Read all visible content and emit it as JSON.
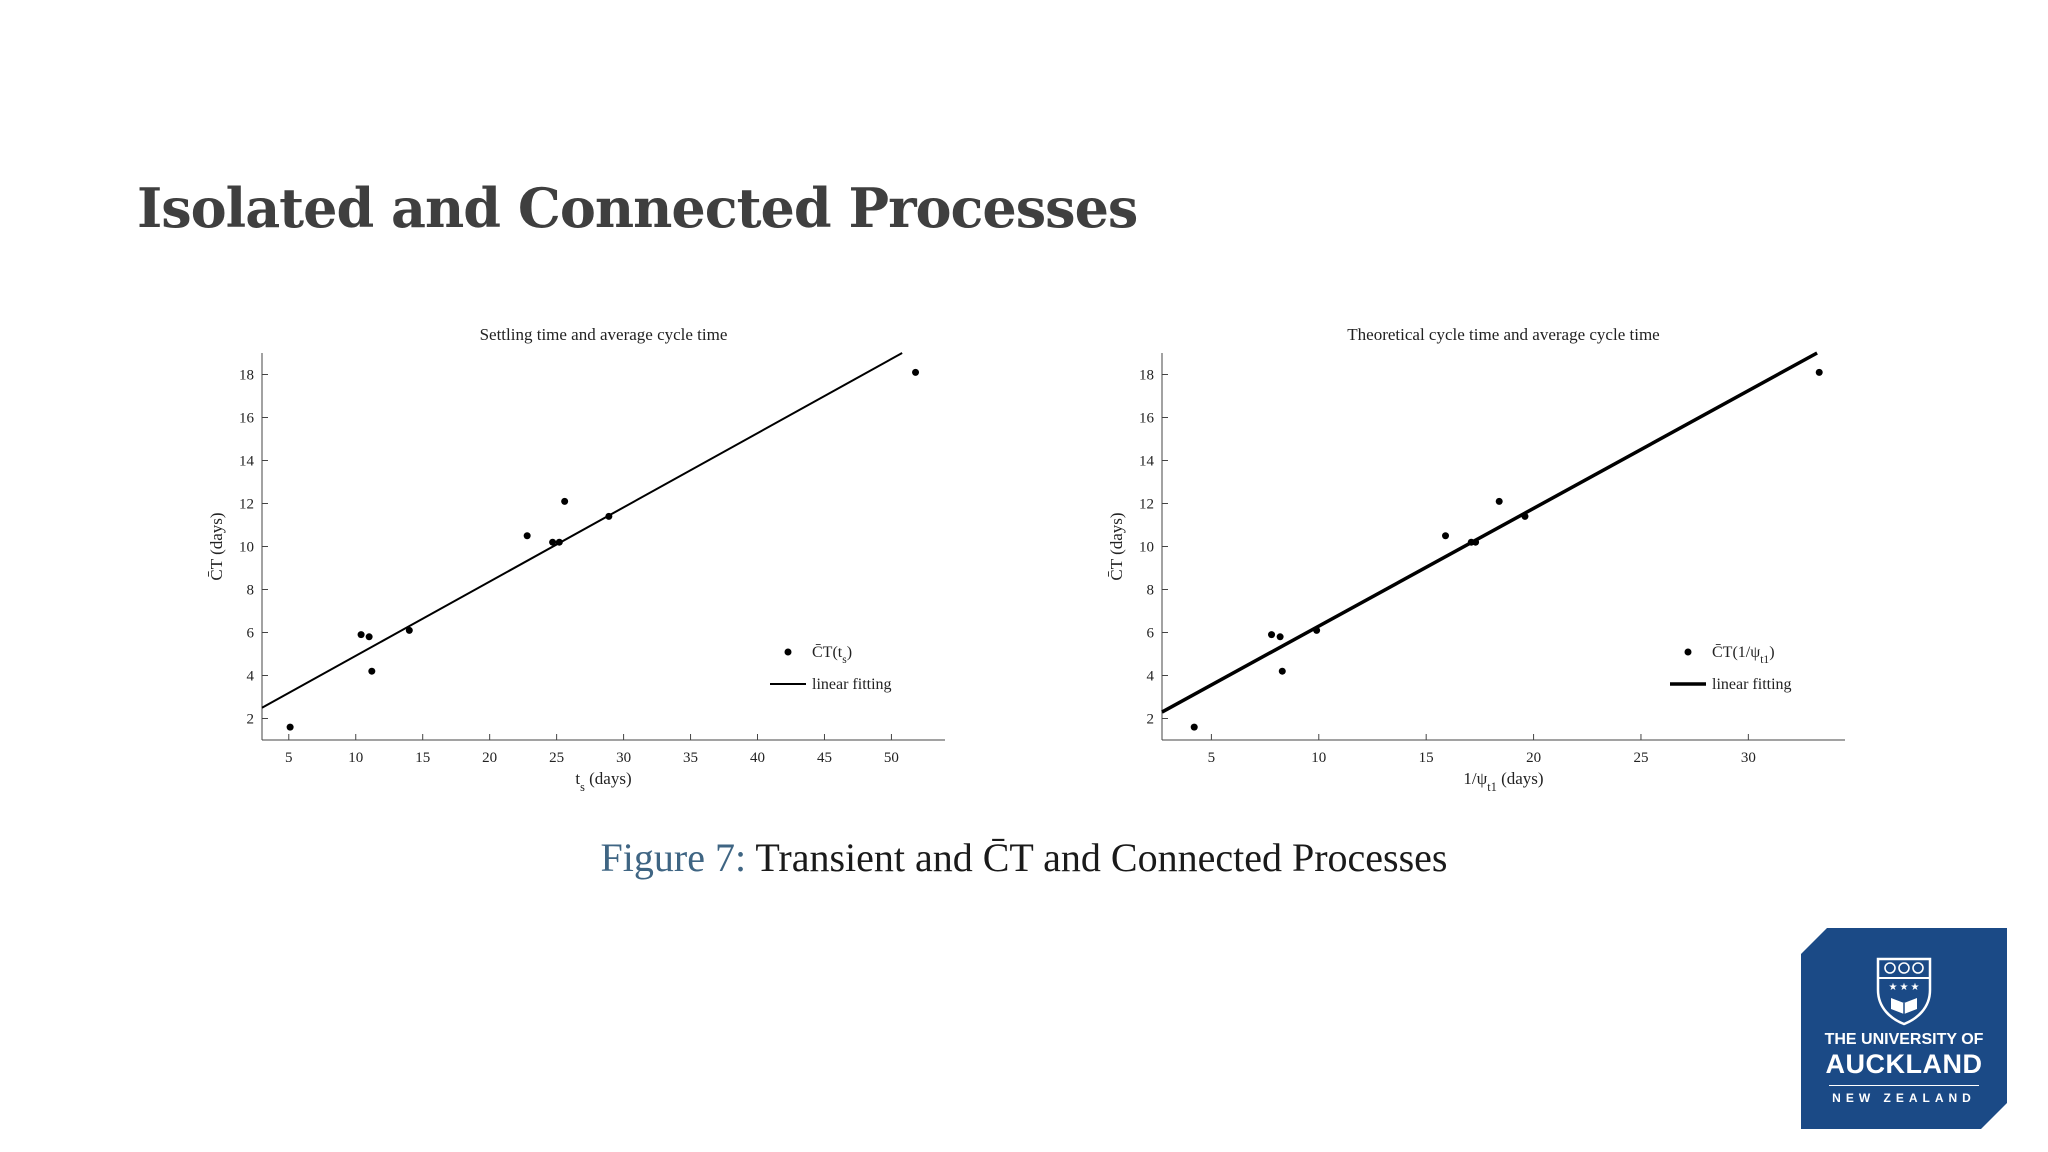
{
  "slide_title": "Isolated and Connected Processes",
  "caption": {
    "figure_label": "Figure 7:",
    "text": "Transient and C̄T and Connected Processes"
  },
  "logo": {
    "line1": "THE UNIVERSITY OF",
    "line2": "AUCKLAND",
    "line3": "NEW ZEALAND"
  },
  "chart_data": [
    {
      "type": "scatter",
      "title": "Settling time and average cycle time",
      "xlabel": "t_s (days)",
      "ylabel": "C̄T (days)",
      "xlim": [
        3,
        54
      ],
      "ylim": [
        1,
        19
      ],
      "xticks": [
        5,
        10,
        15,
        20,
        25,
        30,
        35,
        40,
        45,
        50
      ],
      "yticks": [
        2,
        4,
        6,
        8,
        10,
        12,
        14,
        16,
        18
      ],
      "grid": false,
      "legend_position": "lower-right",
      "points": [
        [
          5.1,
          1.6
        ],
        [
          10.4,
          5.9
        ],
        [
          11.0,
          5.8
        ],
        [
          11.2,
          4.2
        ],
        [
          14.0,
          6.1
        ],
        [
          22.8,
          10.5
        ],
        [
          24.7,
          10.2
        ],
        [
          25.2,
          10.2
        ],
        [
          25.6,
          12.1
        ],
        [
          28.9,
          11.4
        ],
        [
          51.8,
          18.1
        ]
      ],
      "fit_line": [
        [
          3,
          2.5
        ],
        [
          50.8,
          19.0
        ]
      ],
      "series": [
        {
          "name": "C̄T(t_s)",
          "kind": "points"
        },
        {
          "name": "linear fitting",
          "kind": "line"
        }
      ],
      "line_width": 2
    },
    {
      "type": "scatter",
      "title": "Theoretical cycle time and average cycle time",
      "xlabel": "1/ψ_t1 (days)",
      "ylabel": "C̄T (days)",
      "xlim": [
        2.7,
        34.5
      ],
      "ylim": [
        1,
        19
      ],
      "xticks": [
        5,
        10,
        15,
        20,
        25,
        30
      ],
      "yticks": [
        2,
        4,
        6,
        8,
        10,
        12,
        14,
        16,
        18
      ],
      "grid": false,
      "legend_position": "lower-right",
      "points": [
        [
          4.2,
          1.6
        ],
        [
          7.8,
          5.9
        ],
        [
          8.2,
          5.8
        ],
        [
          8.3,
          4.2
        ],
        [
          9.9,
          6.1
        ],
        [
          15.9,
          10.5
        ],
        [
          17.1,
          10.2
        ],
        [
          17.3,
          10.2
        ],
        [
          18.4,
          12.1
        ],
        [
          19.6,
          11.4
        ],
        [
          33.3,
          18.1
        ]
      ],
      "fit_line": [
        [
          2.7,
          2.3
        ],
        [
          33.2,
          19.0
        ]
      ],
      "series": [
        {
          "name": "C̄T(1/ψ_t1)",
          "kind": "points"
        },
        {
          "name": "linear fitting",
          "kind": "line"
        }
      ],
      "line_width": 3.5
    }
  ]
}
